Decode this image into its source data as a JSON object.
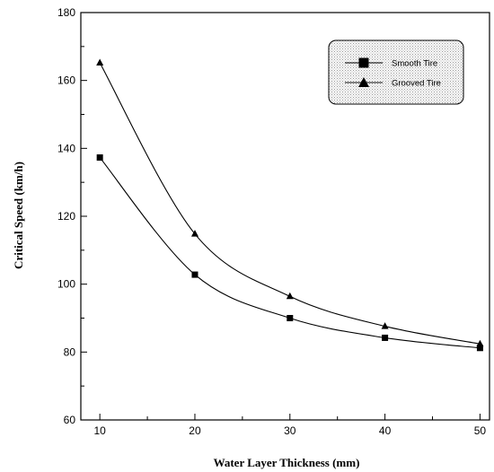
{
  "chart_data": {
    "type": "line",
    "x": [
      10,
      20,
      30,
      40,
      50
    ],
    "xlabel": "Water Layer Thickness (mm)",
    "ylabel": "Critical Speed (km/h)",
    "xlim": [
      8,
      51
    ],
    "ylim": [
      60,
      180
    ],
    "xticks": [
      10,
      20,
      30,
      40,
      50
    ],
    "yticks": [
      60,
      80,
      100,
      120,
      140,
      160,
      180
    ],
    "grid": false,
    "legend_position": "top-right",
    "series": [
      {
        "name": "Smooth Tire",
        "marker": "square",
        "values": [
          137.3,
          102.8,
          90.0,
          84.2,
          81.2
        ]
      },
      {
        "name": "Grooved Tire",
        "marker": "triangle",
        "values": [
          165.2,
          114.8,
          96.4,
          87.6,
          82.4
        ]
      }
    ]
  }
}
